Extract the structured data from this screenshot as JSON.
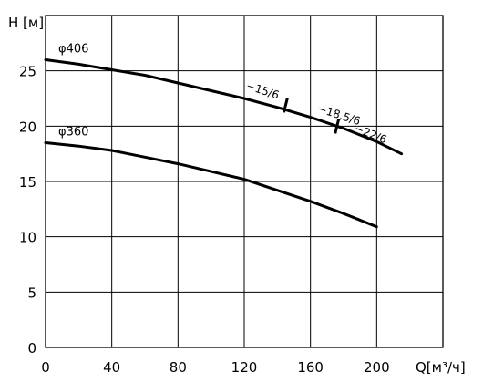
{
  "chart_data": {
    "type": "line",
    "xlabel": "Q[м³/ч]",
    "ylabel": "H [м]",
    "xlim": [
      0,
      240
    ],
    "ylim": [
      0,
      30
    ],
    "grid": true,
    "x_ticks": [
      "0",
      "40",
      "80",
      "120",
      "160",
      "200"
    ],
    "y_ticks": [
      "0",
      "5",
      "10",
      "15",
      "20",
      "25"
    ],
    "series": [
      {
        "name": "φ406",
        "x": [
          0,
          20,
          40,
          60,
          80,
          100,
          120,
          140,
          160,
          180,
          200,
          215
        ],
        "y": [
          26.0,
          25.6,
          25.1,
          24.6,
          23.9,
          23.2,
          22.5,
          21.7,
          20.8,
          19.8,
          18.6,
          17.5
        ]
      },
      {
        "name": "φ360",
        "x": [
          0,
          20,
          40,
          60,
          80,
          100,
          120,
          140,
          160,
          180,
          200
        ],
        "y": [
          18.5,
          18.2,
          17.8,
          17.2,
          16.6,
          15.9,
          15.2,
          14.2,
          13.2,
          12.1,
          10.9
        ]
      }
    ],
    "markers": [
      {
        "label": "−15/6",
        "x": 145,
        "y": 21.9
      },
      {
        "label": "−18,5/6",
        "x": 176,
        "y": 20.0
      },
      {
        "label": "−22/6"
      }
    ]
  }
}
